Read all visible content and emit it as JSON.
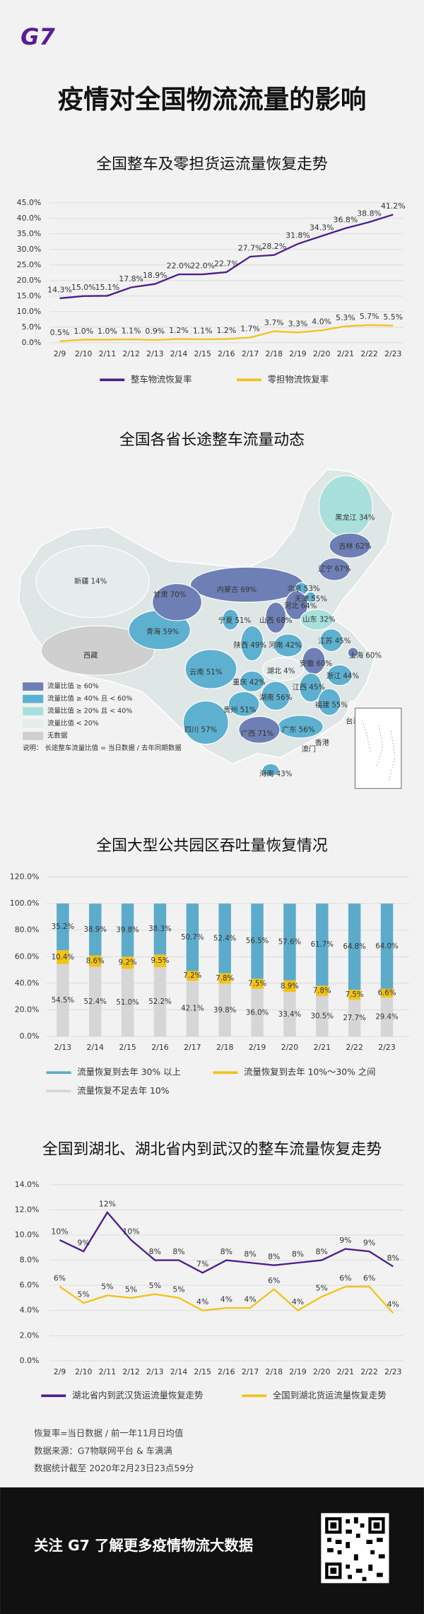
{
  "header": {
    "logo": "G7",
    "title": "疫情对全国物流流量的影响"
  },
  "chart_data": [
    {
      "type": "line",
      "title": "全国整车及零担货运流量恢复走势",
      "categories": [
        "2/9",
        "2/10",
        "2/11",
        "2/12",
        "2/13",
        "2/14",
        "2/15",
        "2/16",
        "2/17",
        "2/18",
        "2/19",
        "2/20",
        "2/21",
        "2/22",
        "2/23"
      ],
      "series": [
        {
          "name": "整车物流恢复率",
          "color": "#4b1d8f",
          "values": [
            14.3,
            15.0,
            15.1,
            17.8,
            18.9,
            22.0,
            22.0,
            22.7,
            27.7,
            28.2,
            31.8,
            34.3,
            36.8,
            38.8,
            41.2
          ],
          "value_labels": [
            "14.3%",
            "15.0%",
            "15.1%",
            "17.8%",
            "18.9%",
            "22.0%",
            "22.0%",
            "22.7%",
            "27.7%",
            "28.2%",
            "31.8%",
            "34.3%",
            "36.8%",
            "38.8%",
            "41.2%"
          ]
        },
        {
          "name": "零担物流恢复率",
          "color": "#f2c318",
          "values": [
            0.5,
            1.0,
            1.0,
            1.1,
            0.9,
            1.2,
            1.1,
            1.2,
            1.7,
            3.7,
            3.3,
            4.0,
            5.3,
            5.7,
            5.5
          ],
          "value_labels": [
            "0.5%",
            "1.0%",
            "1.0%",
            "1.1%",
            "0.9%",
            "1.2%",
            "1.1%",
            "1.2%",
            "1.7%",
            "3.7%",
            "3.3%",
            "4.0%",
            "5.3%",
            "5.7%",
            "5.5%"
          ]
        }
      ],
      "ylim": [
        0,
        45
      ],
      "yticks": [
        {
          "value": 0,
          "label": "0.0%"
        },
        {
          "value": 5,
          "label": "5.0%"
        },
        {
          "value": 10,
          "label": "10.0%"
        },
        {
          "value": 15,
          "label": "15.0%"
        },
        {
          "value": 20,
          "label": "20.0%"
        },
        {
          "value": 25,
          "label": "25.0%"
        },
        {
          "value": 30,
          "label": "30.0%"
        },
        {
          "value": 35,
          "label": "35.0%"
        },
        {
          "value": 40,
          "label": "40.0%"
        },
        {
          "value": 45,
          "label": "45.0%"
        }
      ],
      "grid": true
    },
    {
      "type": "map",
      "title": "全国各省长途整车流量动态",
      "regions": [
        {
          "label": "新疆 14%",
          "color": "#e6ecec"
        },
        {
          "label": "西藏",
          "color": "#cfcfcf"
        },
        {
          "label": "内蒙古 69%",
          "color": "#6e7fb5"
        },
        {
          "label": "青海 59%",
          "color": "#5db0cf"
        },
        {
          "label": "甘肃 70%",
          "color": "#6e7fb5"
        },
        {
          "label": "黑龙江 34%",
          "color": "#a9e0dc"
        },
        {
          "label": "吉林 62%",
          "color": "#6e7fb5"
        },
        {
          "label": "辽宁 67%",
          "color": "#6e7fb5"
        },
        {
          "label": "四川 57%",
          "color": "#5db0cf"
        },
        {
          "label": "云南 51%",
          "color": "#5db0cf"
        },
        {
          "label": "北京 53%",
          "color": "#5db0cf"
        },
        {
          "label": "天津 55%",
          "color": "#5db0cf"
        },
        {
          "label": "河北 64%",
          "color": "#6e7fb5"
        },
        {
          "label": "山东 32%",
          "color": "#a9e0dc"
        },
        {
          "label": "宁夏 51%",
          "color": "#5db0cf"
        },
        {
          "label": "山西 68%",
          "color": "#6e7fb5"
        },
        {
          "label": "陕西 49%",
          "color": "#5db0cf"
        },
        {
          "label": "河南 42%",
          "color": "#5db0cf"
        },
        {
          "label": "江苏 45%",
          "color": "#5db0cf"
        },
        {
          "label": "上海 60%",
          "color": "#6e7fb5"
        },
        {
          "label": "安徽 60%",
          "color": "#6e7fb5"
        },
        {
          "label": "浙江 44%",
          "color": "#5db0cf"
        },
        {
          "label": "湖北 4%",
          "color": "#e6ecec"
        },
        {
          "label": "重庆 42%",
          "color": "#5db0cf"
        },
        {
          "label": "江西 45%",
          "color": "#5db0cf"
        },
        {
          "label": "贵州 51%",
          "color": "#5db0cf"
        },
        {
          "label": "湖南 56%",
          "color": "#5db0cf"
        },
        {
          "label": "福建 55%",
          "color": "#5db0cf"
        },
        {
          "label": "广东 56%",
          "color": "#5db0cf"
        },
        {
          "label": "广西 71%",
          "color": "#6e7fb5"
        },
        {
          "label": "海南 43%",
          "color": "#5db0cf"
        },
        {
          "label": "台湾",
          "color": "#f4f4f4"
        },
        {
          "label": "香港"
        },
        {
          "label": "澳门"
        }
      ],
      "legend": [
        {
          "label": "流量比值 ≥ 60%",
          "color": "#6e7fb5"
        },
        {
          "label": "流量比值 ≥ 40% 且 < 60%",
          "color": "#5db0cf"
        },
        {
          "label": "流量比值 ≥ 20% 且 < 40%",
          "color": "#a9e0dc"
        },
        {
          "label": "流量比值 < 20%",
          "color": "#e6ecec"
        },
        {
          "label": "无数据",
          "color": "#cfcfcf"
        }
      ],
      "note": "说明：  长途整车流量比值 = 当日数据 / 去年同期数据"
    },
    {
      "type": "stacked_bar",
      "title": "全国大型公共园区吞吐量恢复情况",
      "categories": [
        "2/13",
        "2/14",
        "2/15",
        "2/16",
        "2/17",
        "2/18",
        "2/19",
        "2/20",
        "2/21",
        "2/22",
        "2/23"
      ],
      "series": [
        {
          "name": "流量恢复到去年 30% 以上",
          "color": "#5cabcb",
          "values": [
            35.2,
            38.9,
            39.8,
            38.3,
            50.7,
            52.4,
            56.5,
            57.6,
            61.7,
            64.8,
            64.0
          ],
          "value_labels": [
            "35.2%",
            "38.9%",
            "39.8%",
            "38.3%",
            "50.7%",
            "52.4%",
            "56.5%",
            "57.6%",
            "61.7%",
            "64.8%",
            "64.0%"
          ]
        },
        {
          "name": "流量恢复到去年 10%～30% 之间",
          "color": "#f2c318",
          "values": [
            10.4,
            8.6,
            9.2,
            9.5,
            7.2,
            7.8,
            7.5,
            8.9,
            7.8,
            7.5,
            6.6
          ],
          "value_labels": [
            "10.4%",
            "8.6%",
            "9.2%",
            "9.5%",
            "7.2%",
            "7.8%",
            "7.5%",
            "8.9%",
            "7.8%",
            "7.5%",
            "6.6%"
          ]
        },
        {
          "name": "流量恢复不足去年 10%",
          "color": "#d6d6d6",
          "values": [
            54.5,
            52.4,
            51.0,
            52.2,
            42.1,
            39.8,
            36.0,
            33.4,
            30.5,
            27.7,
            29.4
          ],
          "value_labels": [
            "54.5%",
            "52.4%",
            "51.0%",
            "52.2%",
            "42.1%",
            "39.8%",
            "36.0%",
            "33.4%",
            "30.5%",
            "27.7%",
            "29.4%"
          ]
        }
      ],
      "ylim": [
        0,
        120
      ],
      "yticks": [
        {
          "value": 0,
          "label": "0.0%"
        },
        {
          "value": 20,
          "label": "20.0%"
        },
        {
          "value": 40,
          "label": "40.0%"
        },
        {
          "value": 60,
          "label": "60.0%"
        },
        {
          "value": 80,
          "label": "80.0%"
        },
        {
          "value": 100,
          "label": "100.0%"
        },
        {
          "value": 120,
          "label": "120.0%"
        }
      ],
      "grid": true
    },
    {
      "type": "line",
      "title": "全国到湖北、湖北省内到武汉的整车流量恢复走势",
      "categories": [
        "2/9",
        "2/10",
        "2/11",
        "2/12",
        "2/13",
        "2/14",
        "2/15",
        "2/16",
        "2/17",
        "2/18",
        "2/19",
        "2/20",
        "2/21",
        "2/22",
        "2/23"
      ],
      "series": [
        {
          "name": "湖北省内到武汉货运流量恢复走势",
          "color": "#4b1d8f",
          "values": [
            9.6,
            8.7,
            11.8,
            9.6,
            8.0,
            8.0,
            7.0,
            8.0,
            7.8,
            7.6,
            7.8,
            8.0,
            8.9,
            8.7,
            7.5
          ],
          "value_labels": [
            "10%",
            "9%",
            "12%",
            "10%",
            "8%",
            "8%",
            "7%",
            "8%",
            "8%",
            "8%",
            "8%",
            "8%",
            "9%",
            "9%",
            "8%"
          ]
        },
        {
          "name": "全国到湖北货运流量恢复走势",
          "color": "#f2c318",
          "values": [
            5.9,
            4.6,
            5.2,
            5.0,
            5.3,
            5.0,
            4.0,
            4.2,
            4.2,
            5.7,
            4.0,
            5.1,
            5.9,
            5.9,
            3.8
          ],
          "value_labels": [
            "6%",
            "5%",
            "5%",
            "5%",
            "5%",
            "5%",
            "4%",
            "4%",
            "4%",
            "6%",
            "4%",
            "5%",
            "6%",
            "6%",
            "4%"
          ]
        }
      ],
      "ylim": [
        0,
        14
      ],
      "yticks": [
        {
          "value": 0,
          "label": "0.0%"
        },
        {
          "value": 2,
          "label": "2.0%"
        },
        {
          "value": 4,
          "label": "4.0%"
        },
        {
          "value": 6,
          "label": "6.0%"
        },
        {
          "value": 8,
          "label": "8.0%"
        },
        {
          "value": 10,
          "label": "10.0%"
        },
        {
          "value": 12,
          "label": "12.0%"
        },
        {
          "value": 14,
          "label": "14.0%"
        }
      ],
      "grid": true
    }
  ],
  "notes": [
    "恢复率=当日数据 / 前一年11月日均值",
    "数据来源：G7物联网平台 & 车满满",
    "数据统计截至 2020年2月23日23点59分"
  ],
  "footer": {
    "text": "关注 G7 了解更多疫情物流大数据"
  }
}
